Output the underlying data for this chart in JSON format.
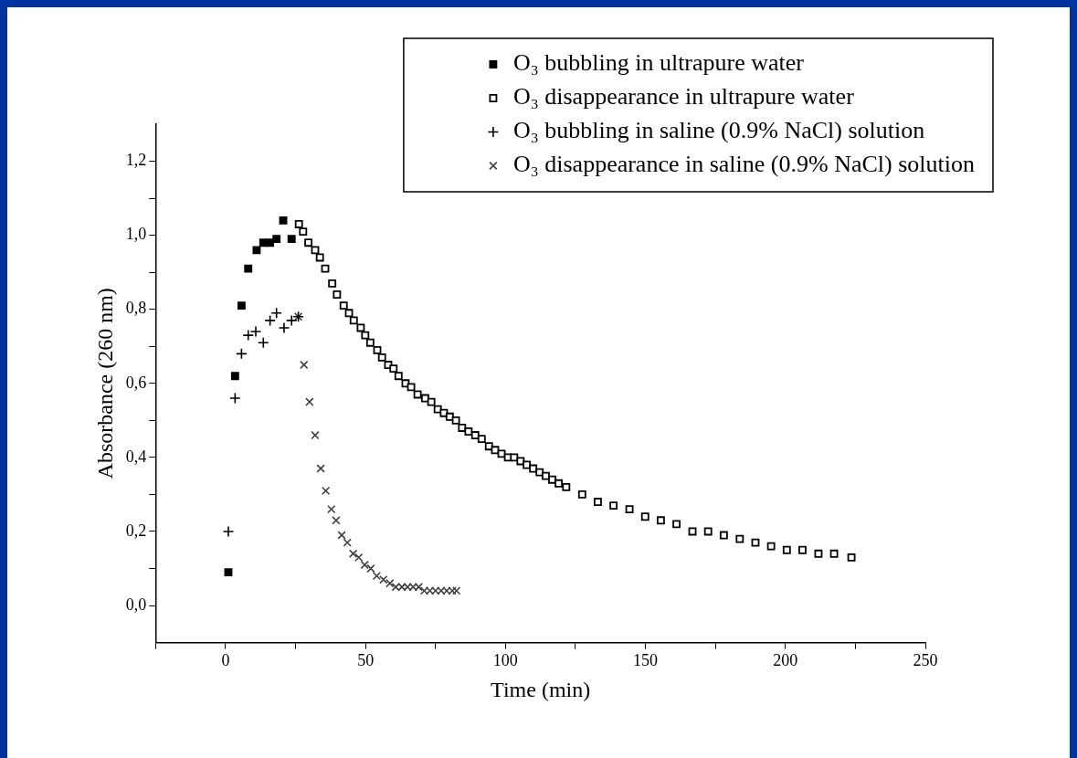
{
  "chart_data": {
    "type": "scatter",
    "xlabel": "Time (min)",
    "ylabel": "Absorbance (260 nm)",
    "xlim": [
      -25,
      250
    ],
    "ylim": [
      -0.1,
      1.3
    ],
    "xticks": [
      {
        "value": -25,
        "label": null
      },
      0,
      {
        "value": 25,
        "label": null
      },
      50,
      {
        "value": 75,
        "label": null
      },
      100,
      {
        "value": 125,
        "label": null
      },
      150,
      {
        "value": 175,
        "label": null
      },
      200,
      {
        "value": 225,
        "label": null
      },
      250
    ],
    "yticks": [
      {
        "value": 0,
        "label": "0,0"
      },
      {
        "value": 0.1,
        "label": null
      },
      {
        "value": 0.2,
        "label": "0,2"
      },
      {
        "value": 0.3,
        "label": null
      },
      {
        "value": 0.4,
        "label": "0,4"
      },
      {
        "value": 0.5,
        "label": null
      },
      {
        "value": 0.6,
        "label": "0,6"
      },
      {
        "value": 0.7,
        "label": null
      },
      {
        "value": 0.8,
        "label": "0,8"
      },
      {
        "value": 0.9,
        "label": null
      },
      {
        "value": 1.0,
        "label": "1,0"
      },
      {
        "value": 1.1,
        "label": null
      },
      {
        "value": 1.2,
        "label": "1,2"
      }
    ],
    "grid": false,
    "legend": "top right",
    "series": [
      {
        "name": "O₃ bubbling in ultrapure water",
        "color": "#000000",
        "marker": "square",
        "x": [
          1,
          3.4,
          5.7,
          8.1,
          11.1,
          13.5,
          15.9,
          18.2,
          20.6,
          23.6
        ],
        "values": [
          0.09,
          0.62,
          0.81,
          0.91,
          0.96,
          0.98,
          0.98,
          0.99,
          1.04,
          0.99
        ]
      },
      {
        "name": "O₃ disappearance in ultrapure water",
        "color": "#000000",
        "marker": "square",
        "x": [
          26.2,
          27.7,
          29.6,
          32,
          33.7,
          35.6,
          38.1,
          39.8,
          42.2,
          44.1,
          45.8,
          48.3,
          49.9,
          51.7,
          54.2,
          55.9,
          58.1,
          60,
          61.8,
          64.3,
          66.3,
          68.6,
          71.3,
          73.5,
          75.8,
          78,
          80.1,
          82.3,
          84.5,
          86.8,
          89.2,
          91.5,
          94.1,
          96.3,
          98.6,
          100.9,
          103.1,
          105.4,
          107.6,
          109.9,
          112.2,
          114.4,
          116.7,
          119,
          121.7,
          127.4,
          133,
          138.6,
          144.3,
          149.9,
          155.5,
          161.1,
          166.8,
          172.4,
          178,
          183.7,
          189.3,
          194.9,
          200.5,
          206.1,
          211.8,
          217.4,
          223.6
        ],
        "values": [
          1.03,
          1.01,
          0.98,
          0.96,
          0.94,
          0.91,
          0.87,
          0.84,
          0.81,
          0.79,
          0.77,
          0.75,
          0.73,
          0.71,
          0.69,
          0.67,
          0.65,
          0.64,
          0.62,
          0.6,
          0.59,
          0.57,
          0.56,
          0.55,
          0.53,
          0.52,
          0.51,
          0.5,
          0.48,
          0.47,
          0.46,
          0.45,
          0.43,
          0.42,
          0.41,
          0.4,
          0.4,
          0.39,
          0.38,
          0.37,
          0.36,
          0.35,
          0.34,
          0.33,
          0.32,
          0.3,
          0.28,
          0.27,
          0.26,
          0.24,
          0.23,
          0.22,
          0.2,
          0.2,
          0.19,
          0.18,
          0.17,
          0.16,
          0.15,
          0.15,
          0.14,
          0.14,
          0.13
        ]
      },
      {
        "name": "O₃ bubbling in saline (0.9% NaCl) solution",
        "color": "#000000",
        "marker": "cross",
        "x": [
          1,
          3.4,
          5.7,
          8.1,
          10.8,
          13.5,
          15.9,
          18.2,
          20.9,
          23.6,
          26
        ],
        "values": [
          0.2,
          0.56,
          0.68,
          0.73,
          0.74,
          0.71,
          0.77,
          0.79,
          0.75,
          0.77,
          0.78
        ]
      },
      {
        "name": "O₃ disappearance in saline (0.9% NaCl) solution",
        "color": "#404040",
        "marker": "cross",
        "x": [
          26,
          28,
          30,
          32,
          34,
          35.8,
          37.8,
          39.5,
          41.5,
          43.5,
          45.6,
          47.6,
          49.7,
          51.9,
          54,
          56.4,
          58.7,
          60.8,
          63,
          65,
          67,
          69,
          71,
          73,
          75,
          77,
          79,
          81,
          82.5
        ],
        "values": [
          0.78,
          0.65,
          0.55,
          0.46,
          0.37,
          0.31,
          0.26,
          0.23,
          0.19,
          0.17,
          0.14,
          0.13,
          0.11,
          0.1,
          0.08,
          0.07,
          0.06,
          0.05,
          0.05,
          0.05,
          0.05,
          0.05,
          0.04,
          0.04,
          0.04,
          0.04,
          0.04,
          0.04,
          0.04
        ]
      }
    ]
  }
}
